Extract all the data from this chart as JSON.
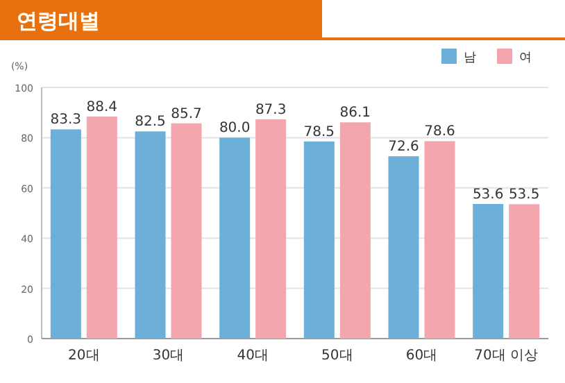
{
  "chart_data": {
    "type": "bar",
    "title": "연령대별",
    "ylabel": "(%)",
    "categories": [
      "20대",
      "30대",
      "40대",
      "50대",
      "60대",
      "70대 이상"
    ],
    "series": [
      {
        "name": "남",
        "color": "#6cb0da",
        "values": [
          83.3,
          82.5,
          80.0,
          78.5,
          72.6,
          53.6
        ]
      },
      {
        "name": "여",
        "color": "#f4a6ae",
        "values": [
          88.4,
          85.7,
          87.3,
          86.1,
          78.6,
          53.5
        ]
      }
    ],
    "ylim": [
      0,
      100
    ],
    "yticks": [
      0,
      20,
      40,
      60,
      80,
      100
    ],
    "grid": "y",
    "legend": "top right",
    "value_labels": [
      [
        "83.3",
        "82.5",
        "80.0",
        "78.5",
        "72.6",
        "53.6"
      ],
      [
        "88.4",
        "85.7",
        "87.3",
        "86.1",
        "78.6",
        "53.5"
      ]
    ]
  }
}
